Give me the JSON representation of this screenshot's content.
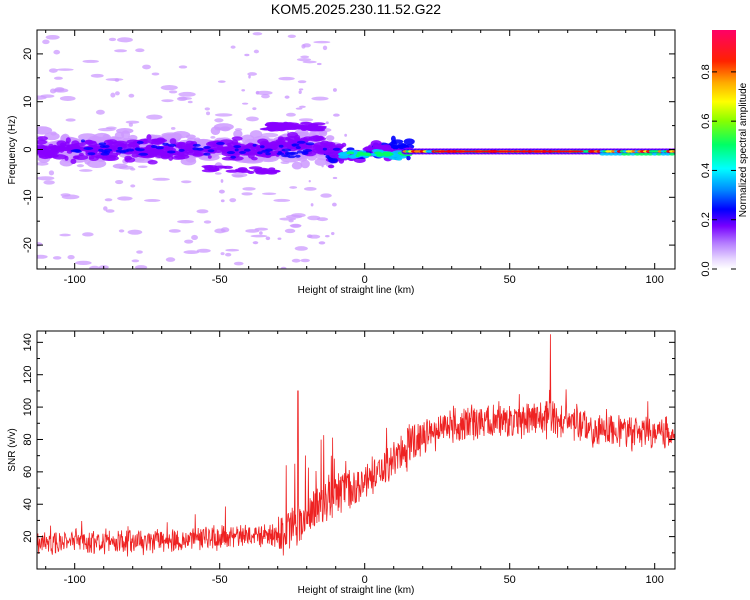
{
  "title": "KOM5.2025.230.11.52.G22",
  "chart_data": [
    {
      "type": "heatmap",
      "name": "spectrogram",
      "xlabel": "Height of straight line (km)",
      "ylabel": "Frequency (Hz)",
      "xlim": [
        -113,
        107
      ],
      "ylim": [
        -25,
        25
      ],
      "xticks": [
        -100,
        -50,
        0,
        50,
        100
      ],
      "yticks": [
        -20,
        -10,
        0,
        10,
        20
      ],
      "colorbar": {
        "label": "Normalized spectral amplitude",
        "range": [
          0,
          0.97
        ],
        "ticks": [
          "0.0",
          "0.2",
          "0.4",
          "0.6",
          "0.8"
        ],
        "tick_values": [
          0,
          0.2,
          0.4,
          0.6,
          0.8
        ]
      },
      "colors": [
        "#ffffff",
        "#cc99ff",
        "#8800ff",
        "#0000ff",
        "#00ccff",
        "#00ff66",
        "#ffff00",
        "#ff8800",
        "#ff0000",
        "#ff0066"
      ]
    },
    {
      "type": "line",
      "name": "snr",
      "xlabel": "Height of straight line (km)",
      "ylabel": "SNR (v/v)",
      "xlim": [
        -113,
        107
      ],
      "ylim": [
        0,
        147
      ],
      "xticks": [
        -100,
        -50,
        0,
        50,
        100
      ],
      "yticks": [
        20,
        40,
        60,
        80,
        100,
        120,
        140
      ],
      "line_color": "#ee2222",
      "trend": [
        {
          "x": -113,
          "y": 16
        },
        {
          "x": -60,
          "y": 18
        },
        {
          "x": -30,
          "y": 22
        },
        {
          "x": -20,
          "y": 30
        },
        {
          "x": -10,
          "y": 45
        },
        {
          "x": 0,
          "y": 55
        },
        {
          "x": 10,
          "y": 68
        },
        {
          "x": 20,
          "y": 82
        },
        {
          "x": 30,
          "y": 89
        },
        {
          "x": 50,
          "y": 91
        },
        {
          "x": 65,
          "y": 93
        },
        {
          "x": 80,
          "y": 86
        },
        {
          "x": 107,
          "y": 84
        }
      ],
      "peaks": [
        {
          "x": 64,
          "y": 145
        },
        {
          "x": -23,
          "y": 110
        }
      ]
    }
  ]
}
